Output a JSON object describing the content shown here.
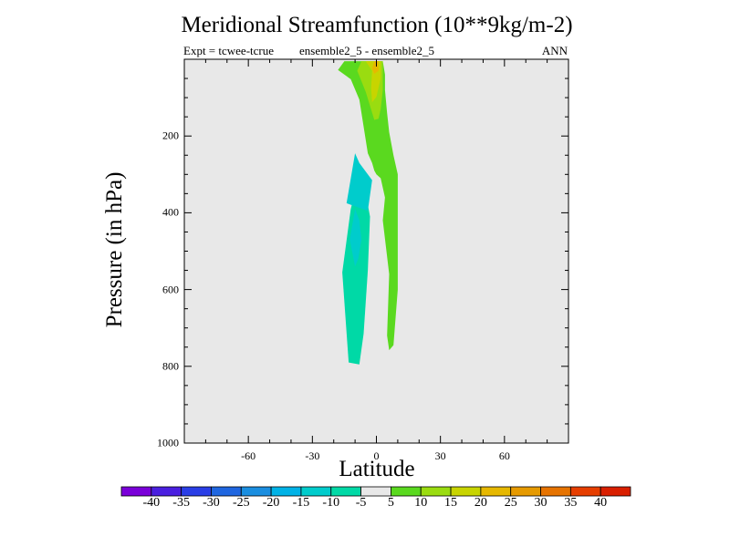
{
  "chart_data": {
    "type": "contour",
    "title": "Meridional Streamfunction (10**9kg/m-2)",
    "subtitle_left": "Expt = tcwee-tcrue",
    "subtitle_center": "ensemble2_5 - ensemble2_5",
    "subtitle_right": "ANN",
    "xlabel": "Latitude",
    "ylabel": "Pressure (in hPa)",
    "xlim": [
      -90,
      90
    ],
    "ylim": [
      1000,
      0
    ],
    "x_ticks": [
      "-60",
      "-30",
      "0",
      "30",
      "60"
    ],
    "x_tick_values": [
      -60,
      -30,
      0,
      30,
      60
    ],
    "y_ticks": [
      "200",
      "400",
      "600",
      "800",
      "1000"
    ],
    "y_tick_values": [
      200,
      400,
      600,
      800,
      1000
    ],
    "background_color": "#e8e8e8",
    "colorbar": {
      "labels": [
        "-40",
        "-35",
        "-30",
        "-25",
        "-20",
        "-15",
        "-10",
        "-5",
        "5",
        "10",
        "15",
        "20",
        "25",
        "30",
        "35",
        "40"
      ],
      "colors": [
        "#7a00d9",
        "#4a1fe0",
        "#2a3ee6",
        "#1f66e0",
        "#1a8ee0",
        "#00b2e6",
        "#00cccc",
        "#00d9a6",
        "#e8e8e8",
        "#5ad91f",
        "#9adc10",
        "#c8d400",
        "#e6b800",
        "#e69a00",
        "#e67300",
        "#e63e00",
        "#d91f00"
      ]
    },
    "contours": [
      {
        "level": "-10 to -5",
        "color": "#00d9a6",
        "polygon": [
          [
            -7.5,
            290
          ],
          [
            -12,
            390
          ],
          [
            -16,
            555
          ],
          [
            -13,
            790
          ],
          [
            -8,
            795
          ],
          [
            -6,
            715
          ],
          [
            -4,
            550
          ],
          [
            -3,
            410
          ],
          [
            -6,
            320
          ],
          [
            -7.5,
            290
          ]
        ]
      },
      {
        "level": "-15 to -10",
        "color": "#00cccc",
        "polygon": [
          [
            -10,
            390
          ],
          [
            -12.5,
            470
          ],
          [
            -10,
            540
          ],
          [
            -8.5,
            520
          ],
          [
            -7,
            470
          ],
          [
            -8,
            420
          ],
          [
            -10,
            390
          ]
        ]
      },
      {
        "level": "-15 to -10",
        "color": "#00cccc",
        "polygon": [
          [
            -10,
            245
          ],
          [
            -14,
            375
          ],
          [
            -4,
            395
          ],
          [
            -2,
            315
          ],
          [
            -8,
            270
          ],
          [
            -10,
            245
          ]
        ]
      },
      {
        "level": "5 to 10",
        "color": "#5ad91f",
        "polygon": [
          [
            -15,
            5
          ],
          [
            -18,
            28
          ],
          [
            -12,
            52
          ],
          [
            -8,
            105
          ],
          [
            -4,
            245
          ],
          [
            -2,
            270
          ],
          [
            -1,
            290
          ],
          [
            0,
            300
          ],
          [
            2,
            310
          ],
          [
            4,
            360
          ],
          [
            3,
            420
          ],
          [
            6,
            560
          ],
          [
            5,
            720
          ],
          [
            6,
            758
          ],
          [
            8,
            745
          ],
          [
            10,
            600
          ],
          [
            10,
            420
          ],
          [
            10,
            300
          ],
          [
            8,
            250
          ],
          [
            6,
            190
          ],
          [
            5,
            140
          ],
          [
            4,
            80
          ],
          [
            4,
            40
          ],
          [
            3,
            5
          ],
          [
            -15,
            5
          ]
        ]
      },
      {
        "level": "10 to 15",
        "color": "#9adc10",
        "polygon": [
          [
            -7,
            5
          ],
          [
            -9,
            30
          ],
          [
            -5,
            85
          ],
          [
            -1,
            158
          ],
          [
            1,
            155
          ],
          [
            2,
            130
          ],
          [
            3,
            80
          ],
          [
            3,
            30
          ],
          [
            3,
            5
          ],
          [
            -7,
            5
          ]
        ]
      },
      {
        "level": "15 to 20",
        "color": "#c8d400",
        "polygon": [
          [
            -5,
            5
          ],
          [
            -2,
            30
          ],
          [
            -2.5,
            75
          ],
          [
            -2,
            112
          ],
          [
            0,
            98
          ],
          [
            2,
            50
          ],
          [
            2,
            5
          ],
          [
            -5,
            5
          ]
        ]
      },
      {
        "level": "20 to 25",
        "color": "#e6b800",
        "polygon": [
          [
            -1,
            5
          ],
          [
            -2,
            25
          ],
          [
            -1,
            38
          ],
          [
            1,
            30
          ],
          [
            1,
            5
          ],
          [
            -1,
            5
          ]
        ]
      }
    ]
  }
}
